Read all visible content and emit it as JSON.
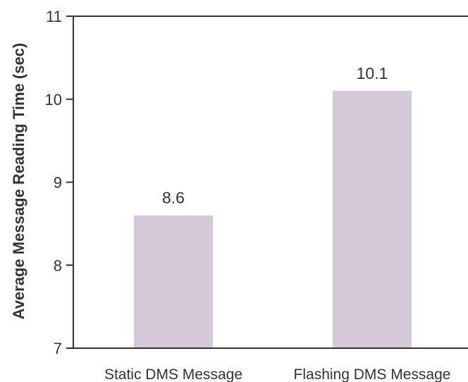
{
  "chart_data": {
    "type": "bar",
    "title": "",
    "xlabel": "",
    "ylabel": "Average Message Reading Time (sec)",
    "categories": [
      "Static DMS Message",
      "Flashing DMS Message"
    ],
    "values": [
      8.6,
      10.1
    ],
    "data_labels": [
      "8.6",
      "10.1"
    ],
    "ylim": [
      7,
      11
    ],
    "yticks": [
      7,
      8,
      9,
      10,
      11
    ],
    "ytick_labels": [
      "7",
      "8",
      "9",
      "10",
      "11"
    ],
    "grid": false,
    "legend": "none",
    "colors": {
      "bar": "#d5c8d8",
      "axis": "#333333",
      "text": "#333333"
    }
  }
}
